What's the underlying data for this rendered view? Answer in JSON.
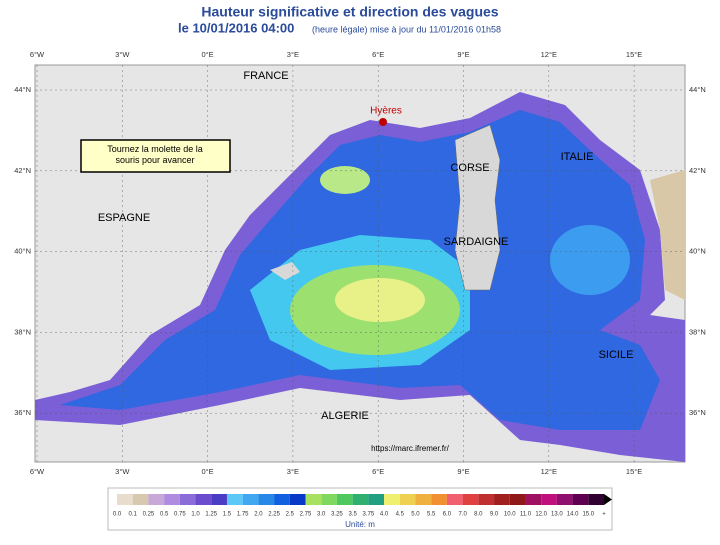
{
  "header": {
    "title": "Hauteur significative et direction des vagues",
    "date": "le 10/01/2016 04:00",
    "update": "(heure légale) mise à jour du 11/01/2016 01h58"
  },
  "map": {
    "lon_labels": [
      "6°W",
      "3°W",
      "0°E",
      "3°E",
      "6°E",
      "9°E",
      "12°E",
      "15°E"
    ],
    "lat_labels": [
      "44°N",
      "42°N",
      "40°N",
      "38°N",
      "36°N"
    ],
    "places": {
      "france": "FRANCE",
      "hyeres": "Hyères",
      "corse": "CORSE",
      "italie": "ITALIE",
      "espagne": "ESPAGNE",
      "sardaigne": "SARDAIGNE",
      "sicile": "SICILE",
      "algerie": "ALGERIE"
    },
    "source": "https://marc.ifremer.fr/",
    "note": "Tournez la molette de la souris pour avancer"
  },
  "legend": {
    "labels": [
      "0.0",
      "0.1",
      "0.25",
      "0.5",
      "0.75",
      "1.0",
      "1.25",
      "1.5",
      "1.75",
      "2.0",
      "2.25",
      "2.5",
      "2.75",
      "3.0",
      "3.25",
      "3.5",
      "3.75",
      "4.0",
      "4.5",
      "5.0",
      "5.5",
      "6.0",
      "7.0",
      "8.0",
      "9.0",
      "10.0",
      "11.0",
      "12.0",
      "13.0",
      "14.0",
      "15.0",
      "+"
    ],
    "colors": [
      "#e8dccc",
      "#d9c8b0",
      "#c8a8d8",
      "#b08ce0",
      "#8c6cd8",
      "#6a4ccc",
      "#4a3cc4",
      "#5cc8f8",
      "#40a8f0",
      "#2888e8",
      "#1060e0",
      "#0838c8",
      "#a8e060",
      "#80d860",
      "#50c860",
      "#30b070",
      "#20a080",
      "#f0f070",
      "#f0d050",
      "#f0b040",
      "#f09030",
      "#f06070",
      "#e04040",
      "#c03030",
      "#a02020",
      "#901818",
      "#a01060",
      "#c01080",
      "#901070",
      "#600050",
      "#300030"
    ],
    "unit": "Unité: m"
  }
}
